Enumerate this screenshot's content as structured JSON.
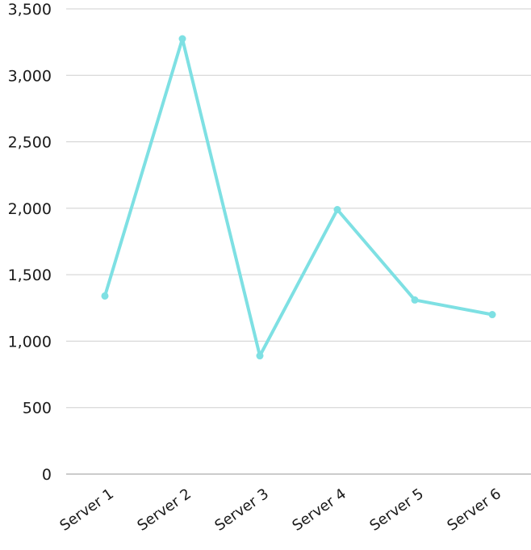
{
  "chart_data": {
    "type": "line",
    "title": "",
    "xlabel": "",
    "ylabel": "",
    "categories": [
      "Server 1",
      "Server 2",
      "Server 3",
      "Server 4",
      "Server 5",
      "Server 6"
    ],
    "series": [
      {
        "values": [
          1340,
          3275,
          890,
          1990,
          1310,
          1200
        ],
        "color": "#7ee0e3"
      }
    ],
    "ylim": [
      0,
      3500
    ],
    "yticks": [
      0,
      500,
      1000,
      1500,
      2000,
      2500,
      3000,
      3500
    ],
    "ytick_labels": [
      "0",
      "500",
      "1,000",
      "1,500",
      "2,000",
      "2,500",
      "3,000",
      "3,500"
    ],
    "grid": true,
    "legend": "none",
    "markers": true
  }
}
